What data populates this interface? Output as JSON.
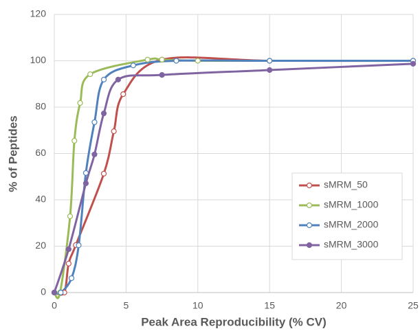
{
  "chart_data": {
    "type": "line",
    "x_label": "Peak Area Reproducibility (% CV)",
    "y_label": "% of Peptides",
    "xlim": [
      0,
      25
    ],
    "xticks": [
      0,
      5,
      10,
      15,
      20,
      25
    ],
    "ylim": [
      0,
      120
    ],
    "yticks": [
      0,
      20,
      40,
      60,
      80,
      100,
      120
    ],
    "grid": true,
    "smooth": true,
    "legend": "lower-right",
    "series": [
      {
        "name": "sMRM_50",
        "color": "#c0504d",
        "marker": "open",
        "x": [
          0,
          0.7,
          1.0,
          1.5,
          3.45,
          4.15,
          4.8,
          7.5,
          15,
          25
        ],
        "values": [
          0,
          0,
          12.5,
          20.5,
          51.3,
          69.6,
          85.6,
          100.5,
          100,
          100
        ]
      },
      {
        "name": "sMRM_1000",
        "color": "#9bbb59",
        "marker": "open",
        "x": [
          0,
          0.4,
          1.1,
          1.4,
          1.8,
          2.5,
          6.5,
          7.5,
          10,
          15,
          25
        ],
        "values": [
          0,
          0,
          32.9,
          65.5,
          81.8,
          94.2,
          100.5,
          100.5,
          100,
          100,
          100
        ]
      },
      {
        "name": "sMRM_2000",
        "color": "#4f81bd",
        "marker": "open",
        "x": [
          0,
          0.45,
          1.2,
          1.7,
          2.2,
          2.8,
          3.45,
          5.5,
          8.5,
          15,
          25
        ],
        "values": [
          0,
          0,
          6.2,
          20.4,
          51.6,
          73.5,
          91.9,
          98,
          100,
          100,
          100
        ]
      },
      {
        "name": "sMRM_3000",
        "color": "#8064a2",
        "marker": "filled",
        "x": [
          0,
          1.0,
          2.2,
          2.8,
          3.45,
          4.45,
          7.5,
          15,
          25
        ],
        "values": [
          0,
          18.7,
          47.1,
          59.6,
          77.3,
          91.9,
          93.9,
          96,
          98.7
        ]
      }
    ]
  }
}
